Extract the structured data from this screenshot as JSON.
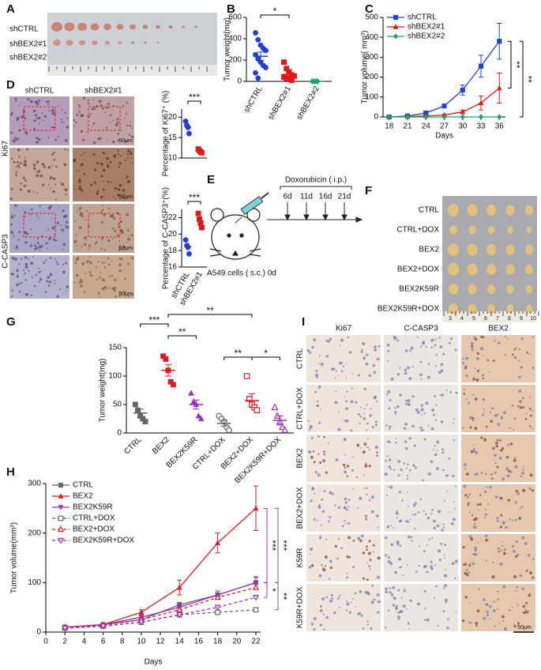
{
  "panel_letters": [
    "A",
    "B",
    "C",
    "D",
    "E",
    "F",
    "G",
    "H",
    "I"
  ],
  "panel_a": {
    "rows": [
      "shCTRL",
      "shBEX2#1",
      "shBEX2#2"
    ]
  },
  "panel_d": {
    "columns": [
      "shCTRL",
      "shBEX2#1"
    ],
    "rows": [
      "Ki67",
      "C-CASP3"
    ],
    "scale": "50μm"
  },
  "panel_e": {
    "treatment": "Doxorubicin ( i.p.)",
    "days": [
      "6d",
      "11d",
      "16d",
      "21d"
    ],
    "cells": "A549 cells ( s.c.) 0d"
  },
  "panel_f": {
    "rows": [
      "CTRL",
      "CTRL+DOX",
      "BEX2",
      "BEX2+DOX",
      "BEX2K59R",
      "BEX2K59R+DOX"
    ],
    "ruler": [
      "3",
      "4",
      "5",
      "6",
      "7",
      "8",
      "9",
      "10"
    ]
  },
  "panel_i": {
    "columns": [
      "Ki67",
      "C-CASP3",
      "BEX2"
    ],
    "rows": [
      "CTRL",
      "CTRL+DOX",
      "BEX2",
      "BEX2+DOX",
      "K59R",
      "K59R+DOX"
    ],
    "scale": "50μm"
  },
  "chart_data": [
    {
      "type": "dot",
      "ylabel": "Tumor weight(mg)",
      "categories": [
        "shCTRL",
        "shBEX2#1",
        "shBEX2#2"
      ],
      "groups": [
        [
          455,
          390,
          340,
          310,
          290,
          250,
          210,
          180,
          150,
          130,
          80,
          30
        ],
        [
          180,
          120,
          90,
          60,
          50,
          40,
          30,
          20,
          10
        ],
        [
          0,
          0,
          0
        ]
      ],
      "means": [
        235,
        65,
        0
      ],
      "errors": [
        40,
        18,
        0
      ],
      "colors": [
        "#1f3fd6",
        "#e01818",
        "#1aa36b"
      ],
      "markers": [
        "circle",
        "square",
        "diamond"
      ],
      "ylim": [
        0,
        600
      ],
      "yticks": [
        0,
        200,
        400,
        600
      ],
      "annotations": [
        "*"
      ]
    },
    {
      "type": "line",
      "ylabel": "Tumor volume( mm³)",
      "xlabel": "Days",
      "x": [
        18,
        21,
        24,
        27,
        30,
        33,
        36
      ],
      "xlim": [
        17,
        37
      ],
      "xticks": [
        18,
        21,
        24,
        27,
        30,
        33,
        36
      ],
      "ylim": [
        0,
        500
      ],
      "yticks": [
        0,
        100,
        200,
        300,
        400,
        500
      ],
      "legend": "upper left",
      "series": [
        {
          "name": "shCTRL",
          "color": "#1f3fd6",
          "marker": "square",
          "values": [
            0,
            5,
            20,
            55,
            135,
            255,
            380
          ],
          "errors": [
            1,
            2,
            4,
            8,
            25,
            55,
            90
          ]
        },
        {
          "name": "shBEX2#1",
          "color": "#e01818",
          "marker": "triangle",
          "values": [
            0,
            2,
            5,
            10,
            25,
            70,
            145
          ],
          "errors": [
            0.5,
            1,
            2,
            3,
            8,
            35,
            75
          ]
        },
        {
          "name": "shBEX2#2",
          "color": "#1aa36b",
          "marker": "diamond",
          "values": [
            0,
            0,
            0,
            0,
            0,
            0,
            0
          ]
        }
      ],
      "annotations": [
        "**",
        "**"
      ]
    },
    {
      "type": "dot",
      "ylabel": "Percentage of Ki67⁺ (%)",
      "groups": [
        [
          19,
          18,
          17.5,
          16
        ],
        [
          12.2,
          11.8,
          11.5,
          11.3
        ]
      ],
      "means": [
        17.6,
        11.7
      ],
      "errors": [
        0.6,
        0.2
      ],
      "colors": [
        "#1f3fd6",
        "#e01818"
      ],
      "markers": [
        "circle",
        "square"
      ],
      "ylim": [
        10,
        22
      ],
      "yticks": [
        10,
        15,
        20
      ],
      "annotations": [
        "***"
      ]
    },
    {
      "type": "dot",
      "ylabel": "Percentage of C-CASP3⁺(%)",
      "categories": [
        "shCTRL",
        "shBEX2#1"
      ],
      "groups": [
        [
          19.3,
          18.6,
          18.4,
          17.6
        ],
        [
          22.5,
          21.8,
          21.3,
          20.8
        ]
      ],
      "means": [
        18.5,
        21.6
      ],
      "errors": [
        0.35,
        0.35
      ],
      "colors": [
        "#1f3fd6",
        "#e01818"
      ],
      "markers": [
        "circle",
        "square"
      ],
      "ylim": [
        16,
        23
      ],
      "yticks": [
        16,
        18,
        20,
        22
      ],
      "annotations": [
        "***"
      ]
    },
    {
      "type": "dot",
      "ylabel": "Tumor weight(mg)",
      "categories": [
        "CTRL",
        "BEX2",
        "BEX2K59R",
        "CTRL+DOX",
        "BEX2+DOX",
        "BEX2K59R+DOX"
      ],
      "groups": [
        [
          50,
          40,
          30,
          25,
          20
        ],
        [
          135,
          130,
          110,
          90,
          85
        ],
        [
          70,
          55,
          50,
          30,
          25
        ],
        [
          30,
          25,
          20,
          10,
          5
        ],
        [
          100,
          60,
          50,
          45,
          40
        ],
        [
          45,
          30,
          20,
          10,
          5
        ]
      ],
      "means": [
        35,
        110,
        50,
        17,
        57,
        22
      ],
      "errors": [
        7,
        10,
        8,
        5,
        12,
        8
      ],
      "colors": [
        "#666666",
        "#e01b24",
        "#9b30c8",
        "#666666",
        "#e01b24",
        "#9b30c8"
      ],
      "markers": [
        "square",
        "square",
        "triangle",
        "circle-open",
        "square-open",
        "triangle-open"
      ],
      "ylim": [
        0,
        150
      ],
      "yticks": [
        0,
        50,
        100,
        150
      ],
      "annotations": [
        "**",
        "***",
        "**",
        "**",
        "*"
      ]
    },
    {
      "type": "line",
      "ylabel": "Tumor volume(mm³)",
      "xlabel": "Days",
      "x": [
        2,
        6,
        10,
        14,
        18,
        22
      ],
      "xlim": [
        0,
        22.5
      ],
      "xticks": [
        0,
        2,
        4,
        6,
        8,
        10,
        12,
        14,
        16,
        18,
        20,
        22
      ],
      "ylim": [
        0,
        300
      ],
      "yticks": [
        0,
        100,
        200,
        300
      ],
      "legend": "upper left",
      "series": [
        {
          "name": "CTRL",
          "color": "#666666",
          "marker": "square",
          "values": [
            10,
            15,
            25,
            55,
            75,
            100
          ],
          "errors": [
            1,
            2,
            3,
            5,
            8,
            10
          ]
        },
        {
          "name": "BEX2",
          "color": "#e01b24",
          "marker": "triangle",
          "values": [
            10,
            15,
            40,
            90,
            180,
            250
          ],
          "errors": [
            2,
            3,
            5,
            15,
            20,
            45
          ]
        },
        {
          "name": "BEX2K59R",
          "color": "#9b30c8",
          "marker": "triangle-down",
          "values": [
            10,
            15,
            30,
            50,
            75,
            100
          ],
          "errors": [
            1,
            2,
            3,
            5,
            8,
            12
          ]
        },
        {
          "name": "CTRL+DOX",
          "color": "#666666",
          "marker": "square-open",
          "dash": true,
          "values": [
            8,
            12,
            20,
            35,
            40,
            45
          ]
        },
        {
          "name": "BEX2+DOX",
          "color": "#e01b24",
          "marker": "triangle-open",
          "dash": true,
          "values": [
            10,
            14,
            25,
            45,
            70,
            90
          ]
        },
        {
          "name": "BEX2K59R+DOX",
          "color": "#9b30c8",
          "marker": "triangle-down-open",
          "dash": true,
          "values": [
            8,
            12,
            20,
            35,
            50,
            70
          ]
        }
      ],
      "annotations": [
        "***",
        "***",
        "*",
        "**"
      ],
      "annotation_colors": [
        "#9b30c8",
        "#666666",
        "#9b30c8",
        "#666666"
      ]
    }
  ]
}
